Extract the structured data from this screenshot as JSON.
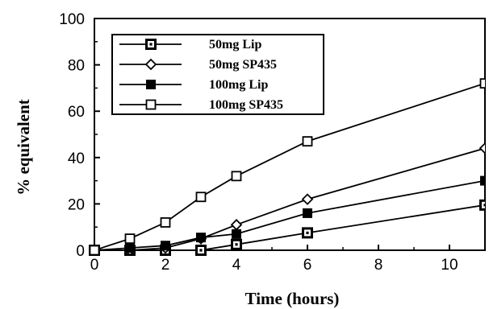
{
  "chart_data": {
    "type": "line",
    "title": "",
    "xlabel": "Time  (hours)",
    "ylabel": "%  equivalent",
    "xlim": [
      0,
      11
    ],
    "ylim": [
      0,
      100
    ],
    "x_ticks": [
      0,
      2,
      4,
      6,
      8,
      10
    ],
    "y_ticks": [
      0,
      20,
      40,
      60,
      80,
      100
    ],
    "grid": false,
    "legend_position": "top-left",
    "series": [
      {
        "name": "50mg Lip",
        "marker": "square-dot",
        "x": [
          0,
          1,
          2,
          3,
          4,
          6,
          11
        ],
        "y": [
          0,
          0,
          0,
          0,
          2.5,
          7.5,
          19.5
        ]
      },
      {
        "name": "50mg SP435",
        "marker": "diamond-open",
        "x": [
          0,
          1,
          2,
          3,
          4,
          6,
          11
        ],
        "y": [
          0,
          0,
          1,
          5,
          11,
          22,
          44
        ]
      },
      {
        "name": "100mg Lip",
        "marker": "square-filled",
        "x": [
          0,
          1,
          2,
          3,
          4,
          6,
          11
        ],
        "y": [
          0,
          1,
          2,
          5.5,
          7,
          16,
          30
        ]
      },
      {
        "name": "100mg SP435",
        "marker": "square-open",
        "x": [
          0,
          1,
          2,
          3,
          4,
          6,
          11
        ],
        "y": [
          0,
          5,
          12,
          23,
          32,
          47,
          72
        ]
      }
    ]
  }
}
